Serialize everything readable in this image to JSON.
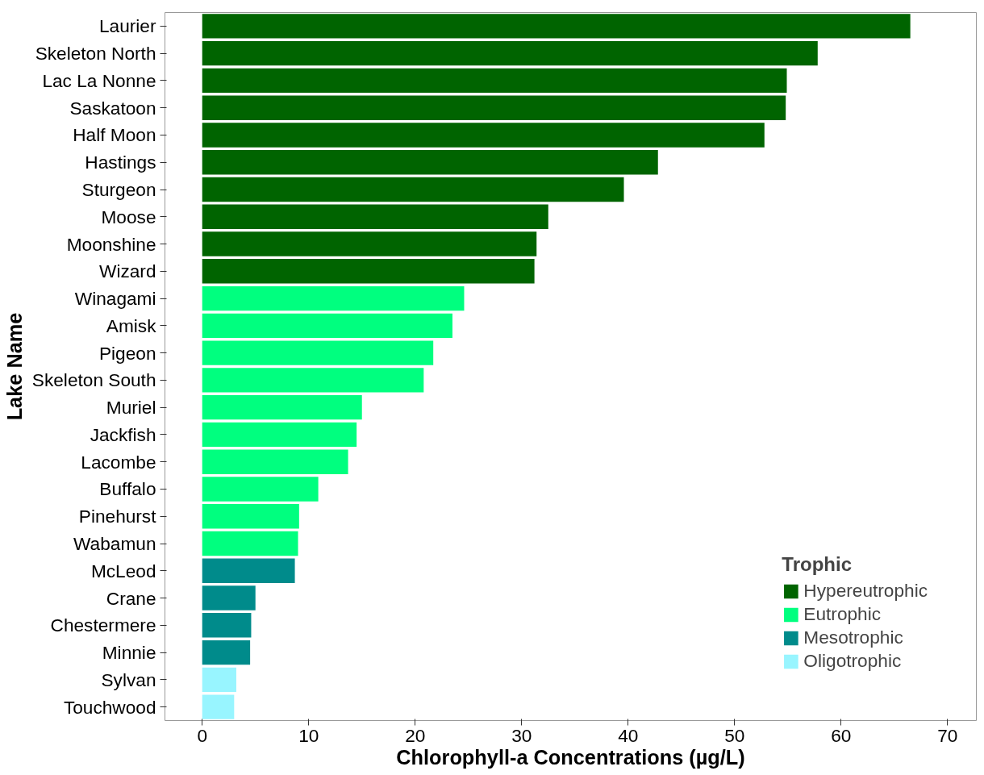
{
  "chart_data": {
    "type": "bar",
    "orientation": "horizontal",
    "xlabel": "Chlorophyll-a Concentrations (µg/L)",
    "ylabel": "Lake Name",
    "legend_title": "Trophic",
    "categories": [
      "Laurier",
      "Skeleton North",
      "Lac La Nonne",
      "Saskatoon",
      "Half Moon",
      "Hastings",
      "Sturgeon",
      "Moose",
      "Moonshine",
      "Wizard",
      "Winagami",
      "Amisk",
      "Pigeon",
      "Skeleton South",
      "Muriel",
      "Jackfish",
      "Lacombe",
      "Buffalo",
      "Pinehurst",
      "Wabamun",
      "McLeod",
      "Crane",
      "Chestermere",
      "Minnie",
      "Sylvan",
      "Touchwood"
    ],
    "series": [
      {
        "name": "Hypereutrophic",
        "color": "#006400",
        "values": [
          66.5,
          57.8,
          54.9,
          54.8,
          52.8,
          42.8,
          39.6,
          32.5,
          31.4,
          31.2,
          null,
          null,
          null,
          null,
          null,
          null,
          null,
          null,
          null,
          null,
          null,
          null,
          null,
          null,
          null,
          null
        ]
      },
      {
        "name": "Eutrophic",
        "color": "#00ff7f",
        "values": [
          null,
          null,
          null,
          null,
          null,
          null,
          null,
          null,
          null,
          null,
          24.6,
          23.5,
          21.7,
          20.8,
          15.0,
          14.5,
          13.7,
          10.9,
          9.1,
          9.0,
          null,
          null,
          null,
          null,
          null,
          null
        ]
      },
      {
        "name": "Mesotrophic",
        "color": "#008b8b",
        "values": [
          null,
          null,
          null,
          null,
          null,
          null,
          null,
          null,
          null,
          null,
          null,
          null,
          null,
          null,
          null,
          null,
          null,
          null,
          null,
          null,
          8.7,
          5.0,
          4.6,
          4.5,
          null,
          null
        ]
      },
      {
        "name": "Oligotrophic",
        "color": "#98f5ff",
        "values": [
          null,
          null,
          null,
          null,
          null,
          null,
          null,
          null,
          null,
          null,
          null,
          null,
          null,
          null,
          null,
          null,
          null,
          null,
          null,
          null,
          null,
          null,
          null,
          null,
          3.2,
          3.0
        ]
      }
    ],
    "xlim": [
      -3.5,
      72.7
    ],
    "xticks": [
      0,
      10,
      20,
      30,
      40,
      50,
      60,
      70
    ],
    "grid": false,
    "legend": "bottom right"
  }
}
